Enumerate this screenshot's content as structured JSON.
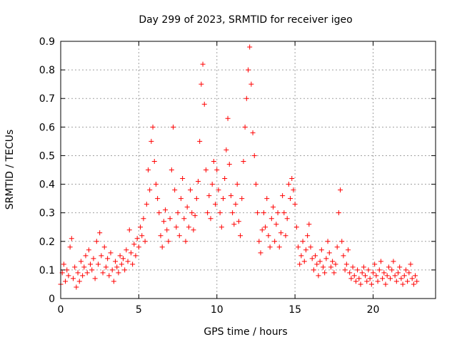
{
  "chart_data": {
    "type": "scatter",
    "title": "Day 299 of 2023, SRMTID for receiver igeo",
    "xlabel": "GPS time / hours",
    "ylabel": "SRMTID / TECUs",
    "xlim": [
      0,
      24
    ],
    "ylim": [
      0,
      0.9
    ],
    "xticks": [
      0,
      5,
      10,
      15,
      20
    ],
    "yticks": [
      0,
      0.1,
      0.2,
      0.3,
      0.4,
      0.5,
      0.6,
      0.7,
      0.8,
      0.9
    ],
    "xtick_labels": [
      "0",
      "5",
      "10",
      "15",
      "20"
    ],
    "ytick_labels": [
      "0",
      "0.1",
      "0.2",
      "0.3",
      "0.4",
      "0.5",
      "0.6",
      "0.7",
      "0.8",
      "0.9"
    ],
    "grid": true,
    "marker": "+",
    "color": "#ff0000",
    "series": [
      {
        "name": "SRMTID",
        "points": [
          [
            0.0,
            0.05
          ],
          [
            0.1,
            0.09
          ],
          [
            0.2,
            0.12
          ],
          [
            0.3,
            0.06
          ],
          [
            0.4,
            0.1
          ],
          [
            0.5,
            0.08
          ],
          [
            0.6,
            0.18
          ],
          [
            0.7,
            0.21
          ],
          [
            0.8,
            0.07
          ],
          [
            0.9,
            0.11
          ],
          [
            1.0,
            0.04
          ],
          [
            1.1,
            0.09
          ],
          [
            1.2,
            0.06
          ],
          [
            1.3,
            0.13
          ],
          [
            1.4,
            0.08
          ],
          [
            1.5,
            0.11
          ],
          [
            1.6,
            0.15
          ],
          [
            1.7,
            0.09
          ],
          [
            1.8,
            0.17
          ],
          [
            1.9,
            0.12
          ],
          [
            2.0,
            0.1
          ],
          [
            2.1,
            0.14
          ],
          [
            2.2,
            0.07
          ],
          [
            2.3,
            0.2
          ],
          [
            2.4,
            0.12
          ],
          [
            2.5,
            0.23
          ],
          [
            2.6,
            0.15
          ],
          [
            2.7,
            0.09
          ],
          [
            2.8,
            0.18
          ],
          [
            2.9,
            0.11
          ],
          [
            3.0,
            0.14
          ],
          [
            3.1,
            0.08
          ],
          [
            3.2,
            0.16
          ],
          [
            3.3,
            0.1
          ],
          [
            3.4,
            0.06
          ],
          [
            3.5,
            0.13
          ],
          [
            3.6,
            0.11
          ],
          [
            3.7,
            0.09
          ],
          [
            3.8,
            0.15
          ],
          [
            3.9,
            0.12
          ],
          [
            4.0,
            0.14
          ],
          [
            4.1,
            0.1
          ],
          [
            4.2,
            0.17
          ],
          [
            4.3,
            0.13
          ],
          [
            4.4,
            0.24
          ],
          [
            4.5,
            0.16
          ],
          [
            4.6,
            0.12
          ],
          [
            4.7,
            0.19
          ],
          [
            4.8,
            0.15
          ],
          [
            4.9,
            0.21
          ],
          [
            5.0,
            0.18
          ],
          [
            5.1,
            0.25
          ],
          [
            5.2,
            0.22
          ],
          [
            5.3,
            0.28
          ],
          [
            5.4,
            0.2
          ],
          [
            5.5,
            0.33
          ],
          [
            5.6,
            0.45
          ],
          [
            5.7,
            0.38
          ],
          [
            5.8,
            0.55
          ],
          [
            5.9,
            0.6
          ],
          [
            6.0,
            0.48
          ],
          [
            6.1,
            0.4
          ],
          [
            6.2,
            0.35
          ],
          [
            6.3,
            0.3
          ],
          [
            6.4,
            0.22
          ],
          [
            6.5,
            0.18
          ],
          [
            6.6,
            0.27
          ],
          [
            6.7,
            0.31
          ],
          [
            6.8,
            0.24
          ],
          [
            6.9,
            0.2
          ],
          [
            7.0,
            0.28
          ],
          [
            7.1,
            0.45
          ],
          [
            7.2,
            0.6
          ],
          [
            7.3,
            0.38
          ],
          [
            7.4,
            0.25
          ],
          [
            7.5,
            0.3
          ],
          [
            7.6,
            0.22
          ],
          [
            7.7,
            0.35
          ],
          [
            7.8,
            0.42
          ],
          [
            7.9,
            0.28
          ],
          [
            8.0,
            0.2
          ],
          [
            8.1,
            0.32
          ],
          [
            8.2,
            0.25
          ],
          [
            8.3,
            0.38
          ],
          [
            8.4,
            0.3
          ],
          [
            8.5,
            0.24
          ],
          [
            8.6,
            0.29
          ],
          [
            8.7,
            0.35
          ],
          [
            8.8,
            0.41
          ],
          [
            8.9,
            0.55
          ],
          [
            9.0,
            0.75
          ],
          [
            9.1,
            0.82
          ],
          [
            9.2,
            0.68
          ],
          [
            9.3,
            0.45
          ],
          [
            9.4,
            0.3
          ],
          [
            9.5,
            0.36
          ],
          [
            9.6,
            0.28
          ],
          [
            9.7,
            0.4
          ],
          [
            9.8,
            0.48
          ],
          [
            9.9,
            0.33
          ],
          [
            10.0,
            0.45
          ],
          [
            10.1,
            0.38
          ],
          [
            10.2,
            0.3
          ],
          [
            10.3,
            0.25
          ],
          [
            10.4,
            0.35
          ],
          [
            10.5,
            0.42
          ],
          [
            10.6,
            0.52
          ],
          [
            10.7,
            0.63
          ],
          [
            10.8,
            0.47
          ],
          [
            10.9,
            0.36
          ],
          [
            11.0,
            0.3
          ],
          [
            11.1,
            0.26
          ],
          [
            11.2,
            0.33
          ],
          [
            11.3,
            0.4
          ],
          [
            11.4,
            0.27
          ],
          [
            11.5,
            0.22
          ],
          [
            11.6,
            0.35
          ],
          [
            11.7,
            0.48
          ],
          [
            11.8,
            0.6
          ],
          [
            11.9,
            0.7
          ],
          [
            12.0,
            0.8
          ],
          [
            12.1,
            0.88
          ],
          [
            12.2,
            0.75
          ],
          [
            12.3,
            0.58
          ],
          [
            12.4,
            0.5
          ],
          [
            12.5,
            0.4
          ],
          [
            12.6,
            0.3
          ],
          [
            12.7,
            0.2
          ],
          [
            12.8,
            0.16
          ],
          [
            12.9,
            0.24
          ],
          [
            13.0,
            0.3
          ],
          [
            13.1,
            0.25
          ],
          [
            13.2,
            0.35
          ],
          [
            13.3,
            0.22
          ],
          [
            13.4,
            0.18
          ],
          [
            13.5,
            0.28
          ],
          [
            13.6,
            0.32
          ],
          [
            13.7,
            0.2
          ],
          [
            13.8,
            0.26
          ],
          [
            13.9,
            0.3
          ],
          [
            14.0,
            0.18
          ],
          [
            14.1,
            0.23
          ],
          [
            14.2,
            0.36
          ],
          [
            14.3,
            0.3
          ],
          [
            14.4,
            0.22
          ],
          [
            14.5,
            0.28
          ],
          [
            14.6,
            0.4
          ],
          [
            14.7,
            0.35
          ],
          [
            14.8,
            0.42
          ],
          [
            14.9,
            0.38
          ],
          [
            15.0,
            0.33
          ],
          [
            15.1,
            0.25
          ],
          [
            15.2,
            0.18
          ],
          [
            15.3,
            0.12
          ],
          [
            15.4,
            0.15
          ],
          [
            15.5,
            0.2
          ],
          [
            15.6,
            0.13
          ],
          [
            15.7,
            0.17
          ],
          [
            15.8,
            0.22
          ],
          [
            15.9,
            0.26
          ],
          [
            16.0,
            0.18
          ],
          [
            16.1,
            0.14
          ],
          [
            16.2,
            0.1
          ],
          [
            16.3,
            0.15
          ],
          [
            16.4,
            0.12
          ],
          [
            16.5,
            0.08
          ],
          [
            16.6,
            0.13
          ],
          [
            16.7,
            0.17
          ],
          [
            16.8,
            0.11
          ],
          [
            16.9,
            0.09
          ],
          [
            17.0,
            0.14
          ],
          [
            17.1,
            0.2
          ],
          [
            17.2,
            0.16
          ],
          [
            17.3,
            0.11
          ],
          [
            17.4,
            0.13
          ],
          [
            17.5,
            0.09
          ],
          [
            17.6,
            0.12
          ],
          [
            17.7,
            0.18
          ],
          [
            17.8,
            0.3
          ],
          [
            17.9,
            0.38
          ],
          [
            18.0,
            0.2
          ],
          [
            18.1,
            0.15
          ],
          [
            18.2,
            0.1
          ],
          [
            18.3,
            0.12
          ],
          [
            18.4,
            0.17
          ],
          [
            18.5,
            0.09
          ],
          [
            18.6,
            0.07
          ],
          [
            18.7,
            0.11
          ],
          [
            18.8,
            0.08
          ],
          [
            18.9,
            0.06
          ],
          [
            19.0,
            0.1
          ],
          [
            19.1,
            0.07
          ],
          [
            19.2,
            0.05
          ],
          [
            19.3,
            0.09
          ],
          [
            19.4,
            0.11
          ],
          [
            19.5,
            0.08
          ],
          [
            19.6,
            0.06
          ],
          [
            19.7,
            0.1
          ],
          [
            19.8,
            0.07
          ],
          [
            19.9,
            0.05
          ],
          [
            20.0,
            0.09
          ],
          [
            20.1,
            0.12
          ],
          [
            20.2,
            0.08
          ],
          [
            20.3,
            0.06
          ],
          [
            20.4,
            0.1
          ],
          [
            20.5,
            0.13
          ],
          [
            20.6,
            0.07
          ],
          [
            20.7,
            0.09
          ],
          [
            20.8,
            0.05
          ],
          [
            20.9,
            0.08
          ],
          [
            21.0,
            0.11
          ],
          [
            21.1,
            0.07
          ],
          [
            21.2,
            0.1
          ],
          [
            21.3,
            0.13
          ],
          [
            21.4,
            0.08
          ],
          [
            21.5,
            0.06
          ],
          [
            21.6,
            0.09
          ],
          [
            21.7,
            0.11
          ],
          [
            21.8,
            0.07
          ],
          [
            21.9,
            0.05
          ],
          [
            22.0,
            0.08
          ],
          [
            22.1,
            0.1
          ],
          [
            22.2,
            0.06
          ],
          [
            22.3,
            0.09
          ],
          [
            22.4,
            0.12
          ],
          [
            22.5,
            0.07
          ],
          [
            22.6,
            0.05
          ],
          [
            22.7,
            0.08
          ],
          [
            22.8,
            0.06
          ]
        ]
      }
    ]
  }
}
